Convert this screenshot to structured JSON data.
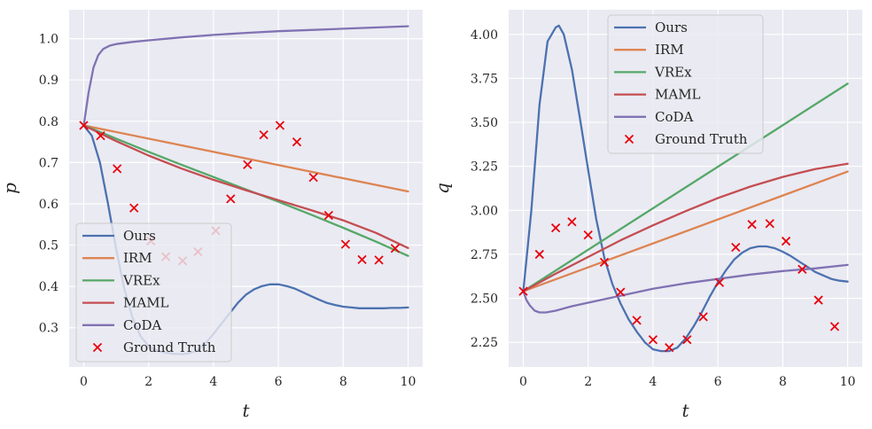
{
  "chart_data": [
    {
      "type": "line",
      "xlabel": "t",
      "ylabel": "p",
      "xlim": [
        -0.45,
        10.45
      ],
      "ylim": [
        0.205,
        1.07
      ],
      "xticks": [
        0,
        2,
        4,
        6,
        8,
        10
      ],
      "yticks": [
        0.3,
        0.4,
        0.5,
        0.6,
        0.7,
        0.8,
        0.9,
        1.0
      ],
      "xtick_labels": [
        "0",
        "2",
        "4",
        "6",
        "8",
        "10"
      ],
      "ytick_labels": [
        "0.3",
        "0.4",
        "0.5",
        "0.6",
        "0.7",
        "0.8",
        "0.9",
        "1.0"
      ],
      "legend_position": "lower-left",
      "series": [
        {
          "name": "Ours",
          "color": "#4c72b0",
          "x": [
            0,
            0.25,
            0.5,
            0.75,
            1,
            1.25,
            1.5,
            1.75,
            2,
            2.25,
            2.5,
            2.75,
            3,
            3.25,
            3.5,
            3.75,
            4,
            4.25,
            4.5,
            4.75,
            5,
            5.25,
            5.5,
            5.75,
            6,
            6.25,
            6.5,
            6.75,
            7,
            7.25,
            7.5,
            7.75,
            8,
            8.25,
            8.5,
            8.75,
            9,
            9.25,
            9.5,
            9.75,
            10
          ],
          "y": [
            0.79,
            0.765,
            0.7,
            0.6,
            0.49,
            0.395,
            0.325,
            0.28,
            0.255,
            0.245,
            0.24,
            0.237,
            0.236,
            0.238,
            0.245,
            0.262,
            0.285,
            0.31,
            0.335,
            0.36,
            0.38,
            0.393,
            0.401,
            0.405,
            0.405,
            0.401,
            0.395,
            0.386,
            0.377,
            0.368,
            0.36,
            0.355,
            0.351,
            0.349,
            0.347,
            0.347,
            0.347,
            0.347,
            0.348,
            0.348,
            0.349
          ]
        },
        {
          "name": "IRM",
          "color": "#dd8452",
          "x": [
            0,
            10
          ],
          "y": [
            0.79,
            0.63
          ]
        },
        {
          "name": "VREx",
          "color": "#55a868",
          "x": [
            0,
            1,
            2,
            3,
            4,
            5,
            6,
            7,
            8,
            9,
            10
          ],
          "y": [
            0.79,
            0.758,
            0.726,
            0.695,
            0.665,
            0.635,
            0.605,
            0.574,
            0.542,
            0.509,
            0.474
          ]
        },
        {
          "name": "MAML",
          "color": "#c44e52",
          "x": [
            0,
            1,
            2,
            3,
            4,
            5,
            6,
            7,
            8,
            9,
            10
          ],
          "y": [
            0.79,
            0.752,
            0.717,
            0.686,
            0.658,
            0.633,
            0.609,
            0.585,
            0.56,
            0.53,
            0.493
          ]
        },
        {
          "name": "CoDA",
          "color": "#8172b3",
          "x": [
            0,
            0.15,
            0.3,
            0.45,
            0.6,
            0.8,
            1,
            1.5,
            2,
            3,
            4,
            5,
            6,
            7,
            8,
            9,
            10
          ],
          "y": [
            0.79,
            0.87,
            0.93,
            0.96,
            0.975,
            0.983,
            0.987,
            0.992,
            0.996,
            1.003,
            1.009,
            1.014,
            1.018,
            1.021,
            1.024,
            1.027,
            1.03
          ]
        }
      ],
      "ground_truth": {
        "name": "Ground Truth",
        "color": "#e8000b",
        "marker": "x",
        "x": [
          0,
          0.52,
          1.03,
          1.55,
          2.07,
          2.53,
          3.05,
          3.52,
          4.07,
          4.53,
          5.05,
          5.55,
          6.05,
          6.57,
          7.08,
          7.55,
          8.07,
          8.58,
          9.1,
          9.6
        ],
        "y": [
          0.79,
          0.765,
          0.685,
          0.59,
          0.51,
          0.472,
          0.462,
          0.484,
          0.535,
          0.612,
          0.695,
          0.767,
          0.79,
          0.75,
          0.664,
          0.572,
          0.502,
          0.465,
          0.464,
          0.492
        ]
      }
    },
    {
      "type": "line",
      "xlabel": "t",
      "ylabel": "q",
      "xlim": [
        -0.45,
        10.45
      ],
      "ylim": [
        2.11,
        4.14
      ],
      "xticks": [
        0,
        2,
        4,
        6,
        8,
        10
      ],
      "yticks": [
        2.25,
        2.5,
        2.75,
        3.0,
        3.25,
        3.5,
        3.75,
        4.0
      ],
      "xtick_labels": [
        "0",
        "2",
        "4",
        "6",
        "8",
        "10"
      ],
      "ytick_labels": [
        "2.25",
        "2.50",
        "2.75",
        "3.00",
        "3.25",
        "3.50",
        "3.75",
        "4.00"
      ],
      "legend_position": "upper-center",
      "series": [
        {
          "name": "Ours",
          "color": "#4c72b0",
          "x": [
            0,
            0.25,
            0.5,
            0.75,
            1,
            1.1,
            1.25,
            1.5,
            1.75,
            2,
            2.25,
            2.5,
            2.75,
            3,
            3.25,
            3.5,
            3.75,
            4,
            4.25,
            4.5,
            4.75,
            5,
            5.25,
            5.5,
            5.75,
            6,
            6.25,
            6.5,
            6.75,
            7,
            7.25,
            7.5,
            7.75,
            8,
            8.25,
            8.5,
            8.75,
            9,
            9.25,
            9.5,
            9.75,
            10
          ],
          "y": [
            2.54,
            3.0,
            3.6,
            3.96,
            4.04,
            4.05,
            4.0,
            3.8,
            3.52,
            3.23,
            2.95,
            2.73,
            2.58,
            2.47,
            2.38,
            2.31,
            2.25,
            2.21,
            2.2,
            2.2,
            2.22,
            2.27,
            2.34,
            2.42,
            2.51,
            2.59,
            2.66,
            2.72,
            2.76,
            2.785,
            2.795,
            2.795,
            2.785,
            2.765,
            2.74,
            2.71,
            2.68,
            2.65,
            2.63,
            2.61,
            2.6,
            2.595
          ]
        },
        {
          "name": "IRM",
          "color": "#dd8452",
          "x": [
            0,
            10
          ],
          "y": [
            2.54,
            3.22
          ]
        },
        {
          "name": "VREx",
          "color": "#55a868",
          "x": [
            0,
            10
          ],
          "y": [
            2.54,
            3.72
          ]
        },
        {
          "name": "MAML",
          "color": "#c44e52",
          "x": [
            0,
            1,
            2,
            3,
            4,
            5,
            6,
            7,
            8,
            9,
            10
          ],
          "y": [
            2.54,
            2.64,
            2.735,
            2.83,
            2.915,
            2.995,
            3.07,
            3.135,
            3.19,
            3.235,
            3.265
          ]
        },
        {
          "name": "CoDA",
          "color": "#8172b3",
          "x": [
            0,
            0.1,
            0.2,
            0.35,
            0.5,
            0.7,
            1,
            1.5,
            2,
            3,
            4,
            5,
            6,
            7,
            8,
            9,
            10
          ],
          "y": [
            2.54,
            2.49,
            2.46,
            2.43,
            2.42,
            2.42,
            2.43,
            2.455,
            2.475,
            2.515,
            2.555,
            2.585,
            2.61,
            2.635,
            2.655,
            2.67,
            2.69
          ]
        }
      ],
      "ground_truth": {
        "name": "Ground Truth",
        "color": "#e8000b",
        "marker": "x",
        "x": [
          0,
          0.5,
          1.0,
          1.5,
          2.0,
          2.5,
          3.0,
          3.5,
          4.0,
          4.5,
          5.05,
          5.55,
          6.05,
          6.55,
          7.05,
          7.6,
          8.1,
          8.6,
          9.1,
          9.6
        ],
        "y": [
          2.54,
          2.75,
          2.9,
          2.935,
          2.86,
          2.705,
          2.535,
          2.375,
          2.265,
          2.22,
          2.265,
          2.395,
          2.59,
          2.79,
          2.92,
          2.925,
          2.825,
          2.665,
          2.49,
          2.34
        ]
      }
    }
  ]
}
